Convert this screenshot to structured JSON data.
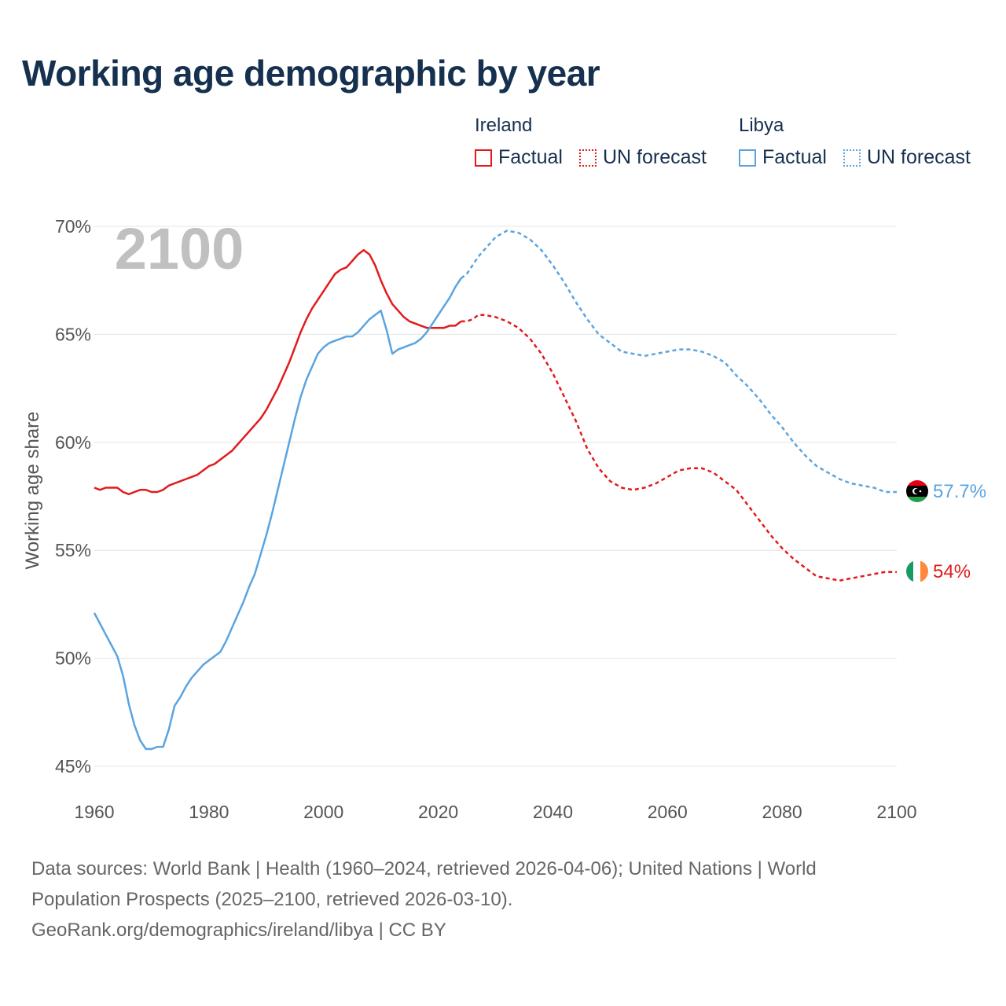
{
  "title": "Working age demographic by year",
  "legend": {
    "groups": [
      {
        "name": "Ireland",
        "factual_label": "Factual",
        "forecast_label": "UN forecast",
        "color": "#e31a1c"
      },
      {
        "name": "Libya",
        "factual_label": "Factual",
        "forecast_label": "UN forecast",
        "color": "#5aa4e0"
      }
    ]
  },
  "footer": {
    "line1": "Data sources: World Bank | Health (1960–2024, retrieved 2026-04-06); United Nations | World",
    "line2": "Population Prospects (2025–2100, retrieved 2026-03-10).",
    "line3": "GeoRank.org/demographics/ireland/libya | CC BY"
  },
  "chart_data": {
    "type": "line",
    "title": "Working age demographic by year",
    "xlabel": "",
    "ylabel": "Working age share",
    "year_overlay": "2100",
    "xlim": [
      1960,
      2100
    ],
    "ylim": [
      45,
      70
    ],
    "x_ticks": [
      1960,
      1980,
      2000,
      2020,
      2040,
      2060,
      2080,
      2100
    ],
    "y_ticks": [
      45,
      50,
      55,
      60,
      65,
      70
    ],
    "y_tick_labels": [
      "45%",
      "50%",
      "55%",
      "60%",
      "65%",
      "70%"
    ],
    "factual_end_year": 2024,
    "series": [
      {
        "name": "Ireland",
        "color": "#e31a1c",
        "end_label": "54%",
        "flag": "ireland-flag",
        "points": [
          [
            1960,
            57.9
          ],
          [
            1961,
            57.8
          ],
          [
            1962,
            57.9
          ],
          [
            1963,
            57.9
          ],
          [
            1964,
            57.9
          ],
          [
            1965,
            57.7
          ],
          [
            1966,
            57.6
          ],
          [
            1967,
            57.7
          ],
          [
            1968,
            57.8
          ],
          [
            1969,
            57.8
          ],
          [
            1970,
            57.7
          ],
          [
            1971,
            57.7
          ],
          [
            1972,
            57.8
          ],
          [
            1973,
            58.0
          ],
          [
            1974,
            58.1
          ],
          [
            1975,
            58.2
          ],
          [
            1976,
            58.3
          ],
          [
            1977,
            58.4
          ],
          [
            1978,
            58.5
          ],
          [
            1979,
            58.7
          ],
          [
            1980,
            58.9
          ],
          [
            1981,
            59.0
          ],
          [
            1982,
            59.2
          ],
          [
            1983,
            59.4
          ],
          [
            1984,
            59.6
          ],
          [
            1985,
            59.9
          ],
          [
            1986,
            60.2
          ],
          [
            1987,
            60.5
          ],
          [
            1988,
            60.8
          ],
          [
            1989,
            61.1
          ],
          [
            1990,
            61.5
          ],
          [
            1991,
            62.0
          ],
          [
            1992,
            62.5
          ],
          [
            1993,
            63.1
          ],
          [
            1994,
            63.7
          ],
          [
            1995,
            64.4
          ],
          [
            1996,
            65.1
          ],
          [
            1997,
            65.7
          ],
          [
            1998,
            66.2
          ],
          [
            1999,
            66.6
          ],
          [
            2000,
            67.0
          ],
          [
            2001,
            67.4
          ],
          [
            2002,
            67.8
          ],
          [
            2003,
            68.0
          ],
          [
            2004,
            68.1
          ],
          [
            2005,
            68.4
          ],
          [
            2006,
            68.7
          ],
          [
            2007,
            68.9
          ],
          [
            2008,
            68.7
          ],
          [
            2009,
            68.2
          ],
          [
            2010,
            67.5
          ],
          [
            2011,
            66.9
          ],
          [
            2012,
            66.4
          ],
          [
            2013,
            66.1
          ],
          [
            2014,
            65.8
          ],
          [
            2015,
            65.6
          ],
          [
            2016,
            65.5
          ],
          [
            2017,
            65.4
          ],
          [
            2018,
            65.3
          ],
          [
            2019,
            65.3
          ],
          [
            2020,
            65.3
          ],
          [
            2021,
            65.3
          ],
          [
            2022,
            65.4
          ],
          [
            2023,
            65.4
          ],
          [
            2024,
            65.6
          ],
          [
            2025,
            65.6
          ],
          [
            2026,
            65.7
          ],
          [
            2027,
            65.9
          ],
          [
            2028,
            65.9
          ],
          [
            2030,
            65.8
          ],
          [
            2032,
            65.6
          ],
          [
            2034,
            65.3
          ],
          [
            2036,
            64.8
          ],
          [
            2038,
            64.1
          ],
          [
            2040,
            63.2
          ],
          [
            2042,
            62.1
          ],
          [
            2044,
            61.0
          ],
          [
            2046,
            59.7
          ],
          [
            2048,
            58.8
          ],
          [
            2050,
            58.2
          ],
          [
            2052,
            57.9
          ],
          [
            2054,
            57.8
          ],
          [
            2056,
            57.9
          ],
          [
            2058,
            58.1
          ],
          [
            2060,
            58.4
          ],
          [
            2062,
            58.7
          ],
          [
            2064,
            58.8
          ],
          [
            2066,
            58.8
          ],
          [
            2068,
            58.6
          ],
          [
            2070,
            58.2
          ],
          [
            2072,
            57.8
          ],
          [
            2074,
            57.1
          ],
          [
            2076,
            56.4
          ],
          [
            2078,
            55.7
          ],
          [
            2080,
            55.1
          ],
          [
            2082,
            54.6
          ],
          [
            2084,
            54.2
          ],
          [
            2086,
            53.8
          ],
          [
            2088,
            53.7
          ],
          [
            2090,
            53.6
          ],
          [
            2092,
            53.7
          ],
          [
            2094,
            53.8
          ],
          [
            2096,
            53.9
          ],
          [
            2098,
            54.0
          ],
          [
            2100,
            54.0
          ]
        ]
      },
      {
        "name": "Libya",
        "color": "#5aa4e0",
        "end_label": "57.7%",
        "flag": "libya-flag",
        "points": [
          [
            1960,
            52.1
          ],
          [
            1961,
            51.6
          ],
          [
            1962,
            51.1
          ],
          [
            1963,
            50.6
          ],
          [
            1964,
            50.1
          ],
          [
            1965,
            49.2
          ],
          [
            1966,
            47.9
          ],
          [
            1967,
            46.9
          ],
          [
            1968,
            46.2
          ],
          [
            1969,
            45.8
          ],
          [
            1970,
            45.8
          ],
          [
            1971,
            45.9
          ],
          [
            1972,
            45.9
          ],
          [
            1973,
            46.7
          ],
          [
            1974,
            47.8
          ],
          [
            1975,
            48.2
          ],
          [
            1976,
            48.7
          ],
          [
            1977,
            49.1
          ],
          [
            1978,
            49.4
          ],
          [
            1979,
            49.7
          ],
          [
            1980,
            49.9
          ],
          [
            1981,
            50.1
          ],
          [
            1982,
            50.3
          ],
          [
            1983,
            50.8
          ],
          [
            1984,
            51.4
          ],
          [
            1985,
            52.0
          ],
          [
            1986,
            52.6
          ],
          [
            1987,
            53.3
          ],
          [
            1988,
            53.9
          ],
          [
            1989,
            54.8
          ],
          [
            1990,
            55.7
          ],
          [
            1991,
            56.7
          ],
          [
            1992,
            57.8
          ],
          [
            1993,
            58.9
          ],
          [
            1994,
            60.0
          ],
          [
            1995,
            61.1
          ],
          [
            1996,
            62.1
          ],
          [
            1997,
            62.9
          ],
          [
            1998,
            63.5
          ],
          [
            1999,
            64.1
          ],
          [
            2000,
            64.4
          ],
          [
            2001,
            64.6
          ],
          [
            2002,
            64.7
          ],
          [
            2003,
            64.8
          ],
          [
            2004,
            64.9
          ],
          [
            2005,
            64.9
          ],
          [
            2006,
            65.1
          ],
          [
            2007,
            65.4
          ],
          [
            2008,
            65.7
          ],
          [
            2009,
            65.9
          ],
          [
            2010,
            66.1
          ],
          [
            2011,
            65.2
          ],
          [
            2012,
            64.1
          ],
          [
            2013,
            64.3
          ],
          [
            2014,
            64.4
          ],
          [
            2015,
            64.5
          ],
          [
            2016,
            64.6
          ],
          [
            2017,
            64.8
          ],
          [
            2018,
            65.1
          ],
          [
            2019,
            65.5
          ],
          [
            2020,
            65.9
          ],
          [
            2021,
            66.3
          ],
          [
            2022,
            66.7
          ],
          [
            2023,
            67.2
          ],
          [
            2024,
            67.6
          ],
          [
            2025,
            67.8
          ],
          [
            2026,
            68.2
          ],
          [
            2027,
            68.6
          ],
          [
            2028,
            68.9
          ],
          [
            2030,
            69.5
          ],
          [
            2032,
            69.8
          ],
          [
            2034,
            69.7
          ],
          [
            2036,
            69.4
          ],
          [
            2038,
            68.9
          ],
          [
            2040,
            68.2
          ],
          [
            2042,
            67.4
          ],
          [
            2044,
            66.5
          ],
          [
            2046,
            65.7
          ],
          [
            2048,
            65.0
          ],
          [
            2050,
            64.6
          ],
          [
            2052,
            64.2
          ],
          [
            2054,
            64.1
          ],
          [
            2056,
            64.0
          ],
          [
            2058,
            64.1
          ],
          [
            2060,
            64.2
          ],
          [
            2062,
            64.3
          ],
          [
            2064,
            64.3
          ],
          [
            2066,
            64.2
          ],
          [
            2068,
            64.0
          ],
          [
            2070,
            63.7
          ],
          [
            2072,
            63.1
          ],
          [
            2074,
            62.6
          ],
          [
            2076,
            62.0
          ],
          [
            2078,
            61.3
          ],
          [
            2080,
            60.7
          ],
          [
            2082,
            60.0
          ],
          [
            2084,
            59.4
          ],
          [
            2086,
            58.9
          ],
          [
            2088,
            58.6
          ],
          [
            2090,
            58.3
          ],
          [
            2092,
            58.1
          ],
          [
            2094,
            58.0
          ],
          [
            2096,
            57.9
          ],
          [
            2098,
            57.7
          ],
          [
            2100,
            57.7
          ]
        ]
      }
    ]
  }
}
